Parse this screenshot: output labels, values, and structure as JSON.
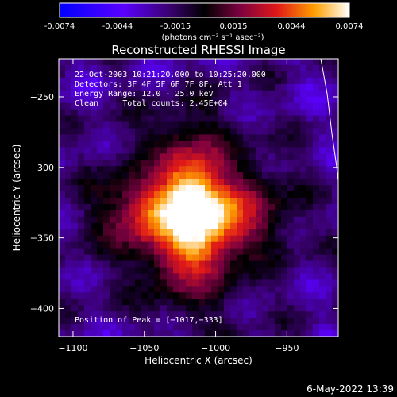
{
  "colorbar": {
    "ticks": [
      "-0.0074",
      "-0.0044",
      "-0.0015",
      "0.0015",
      "0.0044",
      "0.0074"
    ],
    "unit_label": "(photons cm⁻² s⁻¹ asec⁻²)"
  },
  "chart_data": {
    "type": "heatmap",
    "title": "Reconstructed RHESSI Image",
    "xlabel": "Heliocentric X (arcsec)",
    "ylabel": "Heliocentric Y (arcsec)",
    "xlim": [
      -1110,
      -914
    ],
    "ylim": [
      -420,
      -223
    ],
    "xticks": [
      "−1100",
      "−1050",
      "−1000",
      "−950"
    ],
    "yticks": [
      "−250",
      "−300",
      "−350",
      "−400"
    ],
    "xtick_values": [
      -1100,
      -1050,
      -1000,
      -950
    ],
    "ytick_values": [
      -250,
      -300,
      -350,
      -400
    ],
    "value_range": [
      -0.0074,
      0.0074
    ],
    "colormap": [
      "#0000ff",
      "#6a00ff",
      "#000000",
      "#6a0040",
      "#e01010",
      "#ff9000",
      "#ffffff"
    ],
    "peak": {
      "x": -1017,
      "y": -333
    },
    "annotations": [
      "22-Oct-2003 10:21:20.000 to 10:25:20.000",
      "Detectors: 3F 4F 5F 6F 7F 8F, Att 1",
      "Energy Range: 12.0 - 25.0 keV",
      "Clean     Total counts: 2.45E+04"
    ],
    "peak_label": "Position of Peak = [−1017,−333]"
  },
  "footer": {
    "date": "6-May-2022 13:39"
  }
}
